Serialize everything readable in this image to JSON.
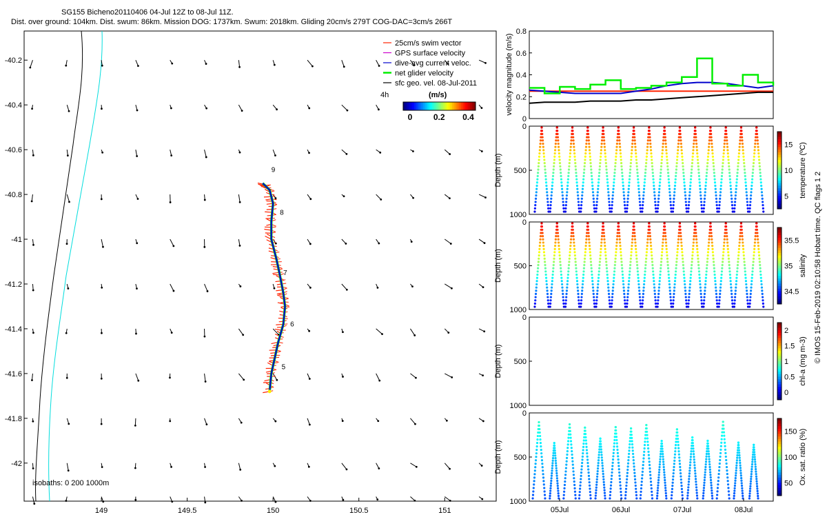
{
  "header": {
    "title": "SG155 Bicheno20110406 04-Jul 12Z to 08-Jul 11Z.",
    "stats": "Dist. over ground: 104km. Dist. swum: 86km. Mission DOG: 1737km. Swum: 2018km. Gliding 20cm/s 279T COG-DAC=3cm/s 266T"
  },
  "side_note": "© IMOS 15-Feb-2019 02:10:58 Hobart time. QC flags 1  2",
  "colors": {
    "track": "#0000cc",
    "swim": "#ff2200",
    "surface": "#cc00cc",
    "glider": "#00ee00",
    "coast_black": "#000000",
    "coast_cyan": "#00dddd",
    "ref_line": "#ff0000"
  },
  "chart_data": [
    {
      "type": "scatter",
      "name": "map",
      "x_ticks": [
        "149",
        "149.5",
        "150",
        "150.5",
        "151"
      ],
      "y_ticks": [
        "-40.2",
        "-40.4",
        "-40.6",
        "-40.8",
        "-41",
        "-41.2",
        "-41.4",
        "-41.6",
        "-41.8",
        "-42"
      ],
      "xlim": [
        148.55,
        151.3
      ],
      "ylim": [
        -42.17,
        -40.07
      ],
      "legend": [
        {
          "label": "25cm/s swim vector",
          "color": "#ff2200"
        },
        {
          "label": "GPS surface velocity",
          "color": "#cc00cc"
        },
        {
          "label": "dive-avg current veloc.",
          "color": "#0000cc"
        },
        {
          "label": "net glider velocity",
          "color": "#00ee00"
        },
        {
          "label": "sfc geo. vel. 08-Jul-2011",
          "color": "#000000"
        }
      ],
      "colorbar": {
        "label": "(m/s)",
        "side_label": "4h",
        "ticks": [
          "0",
          "0.2",
          "0.4"
        ]
      },
      "isobaths_label": "isobaths: 0   200   1000m",
      "day_labels": [
        {
          "label": "9",
          "lon": 149.99,
          "lat": -40.7
        },
        {
          "label": "8",
          "lon": 150.04,
          "lat": -40.89
        },
        {
          "label": "7",
          "lon": 150.06,
          "lat": -41.16
        },
        {
          "label": "6",
          "lon": 150.1,
          "lat": -41.39
        },
        {
          "label": "5",
          "lon": 150.05,
          "lat": -41.58
        }
      ],
      "track": [
        {
          "lon": 149.98,
          "lat": -41.68
        },
        {
          "lon": 149.99,
          "lat": -41.6
        },
        {
          "lon": 150.01,
          "lat": -41.53
        },
        {
          "lon": 150.03,
          "lat": -41.46
        },
        {
          "lon": 150.06,
          "lat": -41.38
        },
        {
          "lon": 150.07,
          "lat": -41.3
        },
        {
          "lon": 150.06,
          "lat": -41.24
        },
        {
          "lon": 150.04,
          "lat": -41.16
        },
        {
          "lon": 150.02,
          "lat": -41.09
        },
        {
          "lon": 149.99,
          "lat": -41.0
        },
        {
          "lon": 149.99,
          "lat": -40.92
        },
        {
          "lon": 150.0,
          "lat": -40.84
        },
        {
          "lon": 149.98,
          "lat": -40.78
        },
        {
          "lon": 149.94,
          "lat": -40.75
        }
      ],
      "vector_lons": [
        148.6,
        148.8,
        149.0,
        149.2,
        149.4,
        149.6,
        149.8,
        150.0,
        150.2,
        150.4,
        150.6,
        150.8,
        151.0,
        151.2
      ],
      "vector_lats": [
        -40.2,
        -40.4,
        -40.6,
        -40.8,
        -41.0,
        -41.2,
        -41.4,
        -41.6,
        -41.8,
        -42.0,
        -42.15
      ]
    },
    {
      "type": "line",
      "name": "velocity",
      "ylabel": "velocity magnitude (m/s)",
      "ylim": [
        0,
        0.8
      ],
      "y_ticks": [
        "0",
        "0.2",
        "0.4",
        "0.6",
        "0.8"
      ],
      "x": [
        0,
        0.25,
        0.5,
        0.75,
        1,
        1.25,
        1.5,
        1.75,
        2,
        2.25,
        2.5,
        2.75,
        3,
        3.25,
        3.5,
        3.75,
        4
      ],
      "series": [
        {
          "name": "25cm/s swim vector",
          "color": "#ff2200",
          "values": [
            0.25,
            0.25,
            0.25,
            0.25,
            0.25,
            0.25,
            0.25,
            0.25,
            0.25,
            0.25,
            0.25,
            0.25,
            0.25,
            0.25,
            0.25,
            0.25,
            0.25
          ]
        },
        {
          "name": "dive-avg current veloc.",
          "color": "#0000cc",
          "values": [
            0.26,
            0.25,
            0.24,
            0.23,
            0.23,
            0.23,
            0.23,
            0.25,
            0.27,
            0.3,
            0.32,
            0.33,
            0.33,
            0.32,
            0.3,
            0.28,
            0.3
          ]
        },
        {
          "name": "sfc geo. vel. 08-Jul-2011",
          "color": "#000000",
          "values": [
            0.14,
            0.15,
            0.15,
            0.15,
            0.16,
            0.16,
            0.16,
            0.17,
            0.17,
            0.18,
            0.19,
            0.2,
            0.21,
            0.22,
            0.23,
            0.24,
            0.24
          ]
        },
        {
          "name": "net glider velocity",
          "color": "#00ee00",
          "values": [
            0.28,
            0.23,
            0.29,
            0.27,
            0.31,
            0.35,
            0.27,
            0.28,
            0.3,
            0.33,
            0.38,
            0.55,
            0.32,
            0.3,
            0.4,
            0.33,
            0.3
          ]
        }
      ]
    },
    {
      "type": "scatter",
      "name": "temperature",
      "ylabel": "Depth (m)",
      "y_ticks": [
        "0",
        "500",
        "1000"
      ],
      "colorbar_label": "temperature (ºC)",
      "colorbar_ticks": [
        "15",
        "10",
        "5"
      ]
    },
    {
      "type": "scatter",
      "name": "salinity",
      "ylabel": "Depth (m)",
      "y_ticks": [
        "0",
        "500",
        "1000"
      ],
      "colorbar_label": "salinity",
      "colorbar_ticks": [
        "35.5",
        "35",
        "34.5"
      ]
    },
    {
      "type": "scatter",
      "name": "chla",
      "ylabel": "Depth (m)",
      "y_ticks": [
        "0",
        "500",
        "1000"
      ],
      "colorbar_label": "chl-a (mg m-3)",
      "colorbar_ticks": [
        "2",
        "1.5",
        "1",
        "0.5",
        "0"
      ]
    },
    {
      "type": "scatter",
      "name": "oxygen",
      "ylabel": "Depth (m)",
      "y_ticks": [
        "0",
        "500",
        "1000"
      ],
      "colorbar_label": "Ox. sat. ratio (%)",
      "colorbar_ticks": [
        "150",
        "100",
        "50"
      ],
      "x_ticks": [
        "05Jul",
        "06Jul",
        "07Jul",
        "08Jul"
      ]
    }
  ]
}
